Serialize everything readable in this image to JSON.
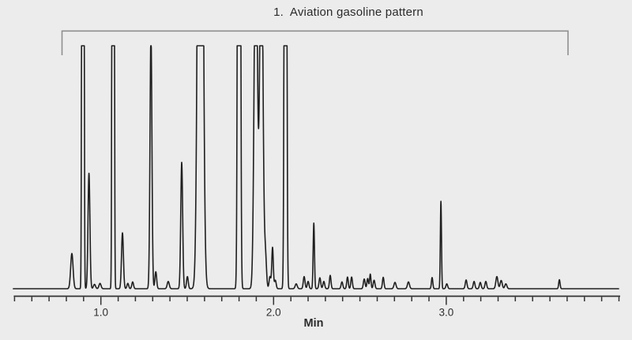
{
  "figure": {
    "xaxis_title": "Min"
  },
  "colors": {
    "background": "#ececec",
    "trace": "#1f1f1f",
    "axis": "#333333",
    "bracket": "#8f8f8f",
    "text": "#2b2b2b"
  },
  "chart_data": {
    "type": "line",
    "kind": "gc-chromatogram",
    "title": "",
    "xlabel": "Min",
    "ylabel": "",
    "x_axis": {
      "unit": "min",
      "range": [
        0.5,
        4.0
      ],
      "minor_tick_step": 0.1,
      "major_ticks": [
        {
          "t": 1.0,
          "label": "1.0"
        },
        {
          "t": 2.0,
          "label": "2.0"
        },
        {
          "t": 3.0,
          "label": "3.0"
        }
      ]
    },
    "y_axis": {
      "visible": false,
      "clip_level": 1.0,
      "note": "tall peaks saturate and are drawn flat-topped at clip level"
    },
    "annotation": {
      "label": "1.  Aviation gasoline pattern",
      "bracket_span_min": [
        0.775,
        3.705
      ]
    },
    "peak_fields": [
      "time_min",
      "amplitude_rel",
      "sigma_min"
    ],
    "peaks": [
      [
        0.832,
        0.145,
        0.007
      ],
      [
        0.896,
        15,
        0.0037
      ],
      [
        0.931,
        0.475,
        0.0055
      ],
      [
        0.963,
        0.018,
        0.006
      ],
      [
        0.995,
        0.022,
        0.006
      ],
      [
        1.071,
        15,
        0.0037
      ],
      [
        1.125,
        0.23,
        0.0055
      ],
      [
        1.156,
        0.022,
        0.005
      ],
      [
        1.184,
        0.028,
        0.005
      ],
      [
        1.29,
        1.06,
        0.0055
      ],
      [
        1.318,
        0.07,
        0.005
      ],
      [
        1.39,
        0.03,
        0.006
      ],
      [
        1.468,
        0.52,
        0.0055
      ],
      [
        1.501,
        0.05,
        0.005
      ],
      [
        1.576,
        4,
        0.012
      ],
      [
        1.8,
        8,
        0.0055
      ],
      [
        1.897,
        1.6,
        0.009
      ],
      [
        1.929,
        1.6,
        0.009
      ],
      [
        1.953,
        0.13,
        0.006
      ],
      [
        1.979,
        0.05,
        0.005
      ],
      [
        1.994,
        0.17,
        0.0045
      ],
      [
        2.01,
        0.035,
        0.005
      ],
      [
        2.069,
        6,
        0.005
      ],
      [
        2.131,
        0.02,
        0.006
      ],
      [
        2.177,
        0.05,
        0.005
      ],
      [
        2.2,
        0.03,
        0.005
      ],
      [
        2.233,
        0.27,
        0.0038
      ],
      [
        2.268,
        0.045,
        0.005
      ],
      [
        2.291,
        0.03,
        0.005
      ],
      [
        2.328,
        0.055,
        0.0045
      ],
      [
        2.396,
        0.028,
        0.005
      ],
      [
        2.428,
        0.048,
        0.0045
      ],
      [
        2.452,
        0.048,
        0.0045
      ],
      [
        2.525,
        0.04,
        0.005
      ],
      [
        2.545,
        0.042,
        0.0045
      ],
      [
        2.56,
        0.06,
        0.004
      ],
      [
        2.582,
        0.035,
        0.005
      ],
      [
        2.635,
        0.047,
        0.0045
      ],
      [
        2.703,
        0.026,
        0.006
      ],
      [
        2.781,
        0.028,
        0.006
      ],
      [
        2.918,
        0.046,
        0.004
      ],
      [
        2.969,
        0.36,
        0.0033
      ],
      [
        3.003,
        0.02,
        0.005
      ],
      [
        3.115,
        0.036,
        0.005
      ],
      [
        3.161,
        0.03,
        0.005
      ],
      [
        3.197,
        0.026,
        0.005
      ],
      [
        3.229,
        0.03,
        0.005
      ],
      [
        3.293,
        0.05,
        0.006
      ],
      [
        3.318,
        0.034,
        0.006
      ],
      [
        3.345,
        0.02,
        0.006
      ],
      [
        3.655,
        0.037,
        0.004
      ]
    ]
  }
}
